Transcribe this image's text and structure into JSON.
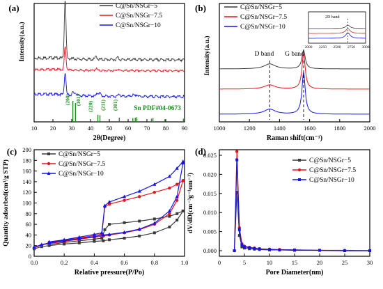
{
  "chart_data": [
    {
      "panel": "(a)",
      "type": "line",
      "xlabel": "2θ(Degree)",
      "ylabel": "Intensity(a.u.)",
      "xlim": [
        10,
        90
      ],
      "xticks": [
        10,
        20,
        30,
        40,
        50,
        60,
        70,
        80,
        90
      ],
      "legend": "top-right",
      "series": [
        {
          "name": "C@Sn/NSGr−5",
          "color": "#3a3a3a",
          "peaks": [
            [
              26.5,
              1.0
            ],
            [
              43.0,
              0.05
            ],
            [
              54.5,
              0.04
            ]
          ]
        },
        {
          "name": "C@Sn/NSGr−7.5",
          "color": "#e8141b",
          "peaks": [
            [
              26.5,
              0.55
            ],
            [
              43.0,
              0.05
            ],
            [
              54.5,
              0.04
            ]
          ]
        },
        {
          "name": "C@Sn/NSGr−10",
          "color": "#1414e8",
          "peaks": [
            [
              26.5,
              0.4
            ],
            [
              30.6,
              0.05
            ],
            [
              32.0,
              0.05
            ],
            [
              43.8,
              0.06
            ],
            [
              45.0,
              0.05
            ],
            [
              55.3,
              0.04
            ],
            [
              62.5,
              0.03
            ],
            [
              64.6,
              0.03
            ]
          ]
        }
      ],
      "reference": {
        "label": "Sn PDF#04-0673",
        "color": "#1e8c1e",
        "lines": [
          [
            30.6,
            1.0
          ],
          [
            32.0,
            0.9
          ],
          [
            43.9,
            0.34
          ],
          [
            45.0,
            0.32
          ],
          [
            55.3,
            0.2
          ],
          [
            62.5,
            0.18
          ],
          [
            63.8,
            0.2
          ],
          [
            64.6,
            0.22
          ],
          [
            72.4,
            0.15
          ],
          [
            73.2,
            0.18
          ],
          [
            79.5,
            0.12
          ],
          [
            89.4,
            0.15
          ]
        ],
        "hkl": [
          [
            "(200)",
            30.6
          ],
          [
            "(101)",
            32.0
          ],
          [
            "(220)",
            43.9
          ],
          [
            "(211)",
            45.0
          ],
          [
            "(301)",
            55.3
          ]
        ]
      }
    },
    {
      "panel": "(b)",
      "type": "line",
      "xlabel": "Raman shift(cm⁻¹)",
      "ylabel": "Intensity(a.u.)",
      "xlim": [
        1000,
        2000
      ],
      "xticks": [
        1000,
        1200,
        1400,
        1600,
        1800,
        2000
      ],
      "legend": "top-left",
      "annotations": [
        "D band",
        "G band"
      ],
      "band_positions": [
        1335,
        1560
      ],
      "series": [
        {
          "name": "C@Sn/NSGr−5",
          "color": "#3a3a3a",
          "D": 0.12,
          "G": 0.45
        },
        {
          "name": "C@Sn/NSGr−7.5",
          "color": "#e8141b",
          "D": 0.1,
          "G": 0.85
        },
        {
          "name": "C@Sn/NSGr−10",
          "color": "#1414e8",
          "D": 0.12,
          "G": 1.0
        }
      ],
      "inset": {
        "title": "2D band",
        "xlim": [
          2000,
          3000
        ],
        "xticks": [
          2000,
          2250,
          2500,
          2750,
          3000
        ],
        "peak": 2690
      }
    },
    {
      "panel": "(c)",
      "type": "line",
      "xlabel": "Relative pressure(P/Po)",
      "ylabel": "Quantity adsorbed(cm³/g STP)",
      "xlim": [
        0,
        1.0
      ],
      "ylim": [
        0,
        200
      ],
      "xticks": [
        0.0,
        0.2,
        0.4,
        0.6,
        0.8,
        1.0
      ],
      "yticks": [
        0,
        20,
        40,
        60,
        80,
        100,
        120,
        140,
        160,
        180,
        200
      ],
      "legend": "top-left",
      "series": [
        {
          "name": "C@Sn/NSGr−5",
          "color": "#3a3a3a",
          "marker": "square",
          "adsorption": [
            [
              0.0,
              14
            ],
            [
              0.05,
              18
            ],
            [
              0.1,
              20
            ],
            [
              0.2,
              23
            ],
            [
              0.3,
              25
            ],
            [
              0.4,
              28
            ],
            [
              0.46,
              29
            ],
            [
              0.5,
              31
            ],
            [
              0.6,
              34
            ],
            [
              0.7,
              38
            ],
            [
              0.8,
              44
            ],
            [
              0.9,
              55
            ],
            [
              0.95,
              68
            ],
            [
              0.99,
              85
            ]
          ],
          "desorption": [
            [
              0.99,
              85
            ],
            [
              0.95,
              80
            ],
            [
              0.9,
              75
            ],
            [
              0.8,
              70
            ],
            [
              0.7,
              66
            ],
            [
              0.6,
              63
            ],
            [
              0.5,
              60
            ],
            [
              0.47,
              50
            ],
            [
              0.45,
              34
            ],
            [
              0.4,
              32
            ],
            [
              0.3,
              29
            ],
            [
              0.2,
              26
            ],
            [
              0.1,
              22
            ]
          ]
        },
        {
          "name": "C@Sn/NSGr−7.5",
          "color": "#e8141b",
          "marker": "circle",
          "adsorption": [
            [
              0.0,
              16
            ],
            [
              0.05,
              21
            ],
            [
              0.1,
              24
            ],
            [
              0.2,
              28
            ],
            [
              0.3,
              32
            ],
            [
              0.4,
              36
            ],
            [
              0.46,
              38
            ],
            [
              0.5,
              40
            ],
            [
              0.6,
              44
            ],
            [
              0.7,
              50
            ],
            [
              0.8,
              60
            ],
            [
              0.9,
              80
            ],
            [
              0.95,
              105
            ],
            [
              0.99,
              142
            ]
          ],
          "desorption": [
            [
              0.99,
              142
            ],
            [
              0.95,
              135
            ],
            [
              0.9,
              128
            ],
            [
              0.8,
              120
            ],
            [
              0.7,
              112
            ],
            [
              0.6,
              105
            ],
            [
              0.5,
              98
            ],
            [
              0.47,
              93
            ],
            [
              0.45,
              42
            ],
            [
              0.4,
              39
            ],
            [
              0.3,
              34
            ],
            [
              0.2,
              30
            ],
            [
              0.1,
              26
            ]
          ]
        },
        {
          "name": "C@Sn/NSGr−10",
          "color": "#1414e8",
          "marker": "triangle",
          "adsorption": [
            [
              0.0,
              17
            ],
            [
              0.05,
              22
            ],
            [
              0.1,
              25
            ],
            [
              0.2,
              29
            ],
            [
              0.3,
              33
            ],
            [
              0.4,
              37
            ],
            [
              0.46,
              40
            ],
            [
              0.5,
              41
            ],
            [
              0.6,
              45
            ],
            [
              0.7,
              51
            ],
            [
              0.8,
              62
            ],
            [
              0.9,
              85
            ],
            [
              0.95,
              112
            ],
            [
              0.99,
              175
            ]
          ],
          "desorption": [
            [
              0.99,
              178
            ],
            [
              0.95,
              165
            ],
            [
              0.9,
              150
            ],
            [
              0.8,
              135
            ],
            [
              0.7,
              122
            ],
            [
              0.6,
              112
            ],
            [
              0.5,
              102
            ],
            [
              0.47,
              95
            ],
            [
              0.45,
              44
            ],
            [
              0.4,
              41
            ],
            [
              0.3,
              36
            ],
            [
              0.2,
              31
            ],
            [
              0.1,
              27
            ]
          ]
        }
      ]
    },
    {
      "panel": "(d)",
      "type": "line",
      "xlabel": "Pore Diameter(nm)",
      "ylabel": "dV/dD(cm⁻³g⁻¹nm⁻¹)",
      "xlim": [
        0,
        30
      ],
      "ylim": [
        0,
        0.025
      ],
      "xticks": [
        0,
        5,
        10,
        15,
        20,
        25,
        30
      ],
      "yticks": [
        "0.000",
        "0.005",
        "0.010",
        "0.015",
        "0.020",
        "0.025"
      ],
      "legend": "top-right",
      "series": [
        {
          "name": "C@Sn/NSGr−5",
          "color": "#3a3a3a",
          "marker": "square",
          "x": [
            3.0,
            3.5,
            4.0,
            4.5,
            5,
            6,
            7,
            8,
            10,
            12,
            15,
            20,
            25,
            30
          ],
          "y": [
            0.0,
            0.0153,
            0.004,
            0.001,
            0.0007,
            0.0005,
            0.0004,
            0.0003,
            0.0002,
            0.0002,
            0.0001,
            0.0001,
            0.0,
            0.0
          ]
        },
        {
          "name": "C@Sn/NSGr−7.5",
          "color": "#e8141b",
          "marker": "circle",
          "x": [
            3.0,
            3.5,
            4.0,
            4.5,
            5,
            6,
            7,
            8,
            10,
            12,
            15,
            20,
            25,
            30
          ],
          "y": [
            0.0,
            0.026,
            0.006,
            0.0018,
            0.0012,
            0.0009,
            0.0007,
            0.0005,
            0.0004,
            0.0003,
            0.0002,
            0.0001,
            0.0001,
            0.0
          ]
        },
        {
          "name": "C@Sn/NSGr−10",
          "color": "#1414e8",
          "marker": "square",
          "x": [
            3.0,
            3.5,
            4.0,
            4.5,
            5,
            6,
            7,
            8,
            10,
            12,
            15,
            20,
            25,
            30
          ],
          "y": [
            0.0,
            0.0238,
            0.0055,
            0.0015,
            0.001,
            0.0008,
            0.0006,
            0.0005,
            0.0003,
            0.0002,
            0.0002,
            0.0001,
            0.0,
            0.0
          ]
        }
      ]
    }
  ]
}
